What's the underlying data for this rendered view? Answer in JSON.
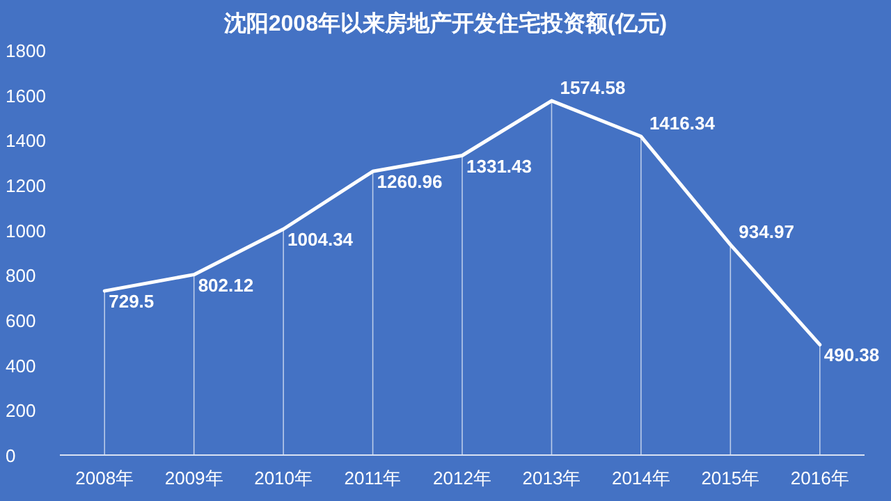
{
  "chart_data": {
    "type": "line",
    "title": "沈阳2008年以来房地产开发住宅投资额(亿元)",
    "categories": [
      "2008年",
      "2009年",
      "2010年",
      "2011年",
      "2012年",
      "2013年",
      "2014年",
      "2015年",
      "2016年"
    ],
    "values": [
      729.5,
      802.12,
      1004.34,
      1260.96,
      1331.43,
      1574.58,
      1416.34,
      934.97,
      490.38
    ],
    "color": "#ffffff",
    "ylim": [
      0,
      1800
    ],
    "yticks": [
      0,
      200,
      400,
      600,
      800,
      1000,
      1200,
      1400,
      1600,
      1800
    ],
    "data_labels": true,
    "grid": "x"
  }
}
